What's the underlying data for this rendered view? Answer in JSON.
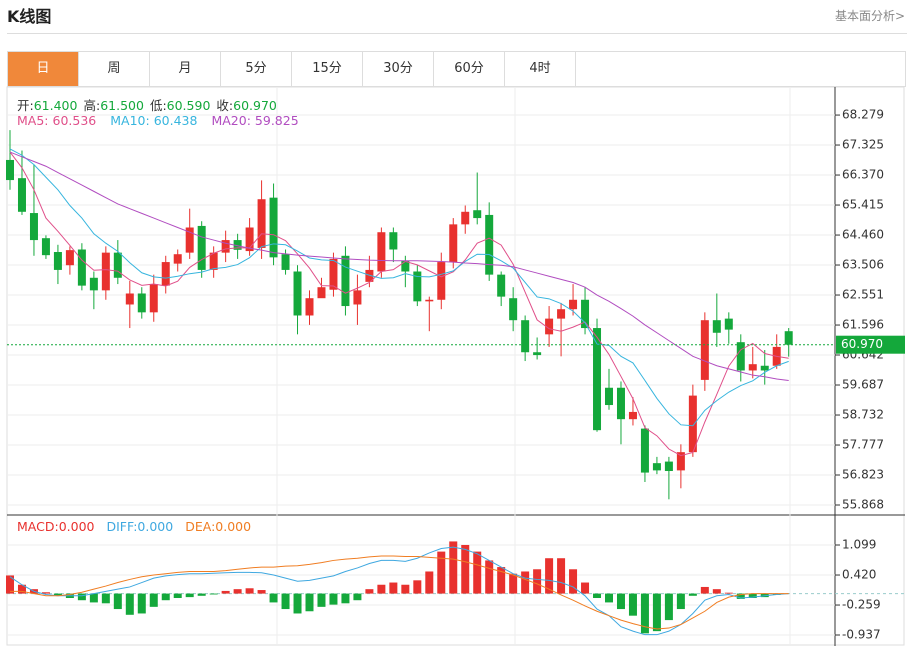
{
  "header": {
    "title": "K线图",
    "link": "基本面分析>"
  },
  "tabs": [
    "日",
    "周",
    "月",
    "5分",
    "15分",
    "30分",
    "60分",
    "4时"
  ],
  "chart_data": [
    {
      "type": "candlestick",
      "info": [
        {
          "label": "开:",
          "value": "61.400"
        },
        {
          "label": "高:",
          "value": "61.500"
        },
        {
          "label": "低:",
          "value": "60.590"
        },
        {
          "label": "收:",
          "value": "60.970"
        }
      ],
      "up_color": "#e8312e",
      "down_color": "#14a83b",
      "open": [
        66.85,
        66.27,
        65.16,
        64.36,
        63.92,
        63.5,
        64.0,
        63.1,
        62.7,
        63.9,
        62.25,
        62.6,
        62.0,
        62.85,
        63.55,
        63.9,
        64.75,
        63.35,
        63.9,
        64.3,
        63.95,
        64.05,
        65.65,
        63.85,
        63.3,
        61.9,
        62.45,
        62.72,
        63.8,
        62.25,
        62.97,
        63.3,
        64.55,
        63.65,
        63.3,
        62.35,
        62.4,
        63.6,
        64.8,
        65.25,
        65.1,
        63.2,
        62.45,
        61.75,
        60.73,
        61.3,
        61.8,
        62.1,
        62.4,
        61.5,
        59.6,
        59.6,
        58.6,
        58.3,
        57.2,
        57.25,
        56.97,
        57.55,
        59.85,
        61.75,
        61.8,
        61.05,
        60.15,
        60.3,
        60.3,
        61.4
      ],
      "high": [
        67.8,
        67.15,
        66.7,
        64.45,
        64.15,
        64.1,
        64.2,
        63.3,
        64.1,
        64.3,
        63.0,
        62.8,
        63.2,
        63.8,
        64.0,
        65.3,
        64.9,
        64.1,
        64.6,
        64.5,
        65.0,
        66.2,
        66.1,
        64.0,
        63.5,
        62.7,
        63.1,
        63.9,
        64.1,
        63.2,
        63.8,
        64.7,
        64.7,
        63.8,
        63.5,
        62.5,
        63.9,
        65.0,
        65.4,
        66.45,
        65.5,
        63.3,
        62.8,
        61.9,
        61.2,
        62.2,
        62.3,
        62.9,
        62.8,
        61.8,
        60.2,
        59.8,
        59.3,
        58.4,
        57.4,
        57.4,
        57.8,
        59.7,
        62.0,
        62.6,
        62.0,
        61.3,
        60.9,
        60.8,
        61.3,
        61.5
      ],
      "low": [
        65.9,
        65.1,
        63.8,
        63.7,
        62.9,
        63.2,
        62.7,
        62.1,
        62.4,
        62.9,
        61.5,
        61.8,
        61.7,
        62.6,
        63.3,
        63.7,
        63.1,
        63.1,
        63.6,
        63.7,
        63.8,
        63.7,
        63.5,
        63.2,
        61.3,
        61.6,
        62.5,
        62.5,
        61.9,
        61.6,
        62.8,
        63.1,
        63.6,
        62.8,
        62.2,
        61.4,
        62.1,
        63.4,
        64.5,
        64.8,
        63.0,
        62.2,
        61.4,
        60.45,
        60.5,
        60.9,
        60.6,
        61.9,
        61.3,
        58.2,
        58.9,
        57.8,
        58.4,
        56.6,
        56.85,
        56.05,
        56.4,
        57.4,
        59.5,
        60.9,
        61.0,
        59.8,
        59.9,
        59.7,
        60.2,
        60.59
      ],
      "close": [
        66.21,
        65.2,
        64.3,
        63.82,
        63.35,
        63.98,
        62.85,
        62.7,
        63.9,
        63.1,
        62.6,
        62.0,
        62.9,
        63.6,
        63.85,
        64.7,
        63.35,
        63.9,
        64.3,
        63.99,
        64.7,
        65.6,
        63.75,
        63.35,
        61.9,
        62.45,
        62.8,
        63.7,
        62.2,
        62.7,
        63.35,
        64.55,
        64.0,
        63.3,
        62.35,
        62.4,
        63.6,
        64.8,
        65.2,
        65.0,
        63.2,
        62.5,
        61.75,
        60.73,
        60.64,
        61.8,
        62.1,
        62.4,
        61.5,
        58.25,
        59.05,
        58.6,
        58.83,
        56.9,
        56.97,
        56.95,
        57.55,
        59.35,
        61.75,
        61.35,
        61.45,
        60.15,
        60.35,
        60.15,
        60.9,
        60.97
      ],
      "lines": [
        {
          "name": "MA5:",
          "value_label": "60.536",
          "color": "#e0508a",
          "values": [
            67.1,
            66.6,
            65.9,
            65.0,
            64.58,
            64.13,
            63.66,
            63.34,
            63.36,
            63.31,
            63.03,
            62.86,
            62.9,
            62.84,
            62.99,
            63.43,
            63.68,
            63.88,
            64.02,
            64.05,
            64.05,
            64.5,
            64.47,
            64.28,
            63.86,
            63.41,
            62.85,
            62.84,
            62.61,
            62.77,
            62.95,
            63.3,
            63.36,
            63.62,
            63.51,
            63.32,
            63.13,
            63.29,
            63.67,
            64.2,
            64.36,
            64.14,
            63.53,
            62.64,
            61.76,
            61.48,
            61.4,
            61.53,
            61.69,
            61.21,
            60.66,
            59.96,
            59.25,
            58.33,
            58.07,
            57.65,
            57.44,
            57.54,
            58.51,
            59.39,
            60.29,
            60.81,
            61.01,
            60.69,
            60.6,
            60.54
          ]
        },
        {
          "name": "MA10:",
          "value_label": "60.438",
          "color": "#37b5de",
          "values": [
            67.2,
            67.0,
            66.7,
            66.3,
            65.9,
            65.4,
            65.0,
            64.5,
            64.2,
            63.94,
            63.58,
            63.26,
            63.13,
            63.09,
            63.15,
            63.23,
            63.28,
            63.39,
            63.43,
            63.52,
            63.74,
            64.09,
            64.18,
            64.15,
            63.95,
            63.73,
            63.67,
            63.65,
            63.44,
            63.31,
            63.18,
            63.08,
            63.1,
            63.23,
            63.14,
            63.13,
            63.21,
            63.32,
            63.62,
            63.85,
            63.84,
            63.64,
            63.41,
            62.95,
            62.49,
            62.43,
            62.28,
            62.04,
            61.67,
            60.99,
            60.95,
            60.6,
            60.39,
            59.83,
            59.26,
            58.77,
            58.42,
            58.39,
            58.88,
            59.19,
            59.46,
            59.67,
            59.82,
            60.09,
            60.3,
            60.44
          ]
        },
        {
          "name": "MA20:",
          "value_label": "59.825",
          "color": "#b14dc0",
          "values": [
            67.1,
            66.95,
            66.8,
            66.65,
            66.45,
            66.25,
            66.05,
            65.85,
            65.65,
            65.45,
            65.3,
            65.15,
            65.0,
            64.85,
            64.7,
            64.55,
            64.4,
            64.3,
            64.2,
            64.12,
            64.04,
            63.98,
            63.9,
            63.86,
            63.82,
            63.79,
            63.76,
            63.73,
            63.7,
            63.68,
            63.66,
            63.65,
            63.64,
            63.64,
            63.64,
            63.63,
            63.62,
            63.6,
            63.57,
            63.55,
            63.52,
            63.5,
            63.45,
            63.35,
            63.25,
            63.15,
            63.05,
            62.95,
            62.8,
            62.55,
            62.35,
            62.12,
            61.88,
            61.6,
            61.35,
            61.1,
            60.85,
            60.6,
            60.45,
            60.3,
            60.2,
            60.1,
            60.0,
            59.95,
            59.88,
            59.83
          ]
        }
      ],
      "last_price": {
        "value": 60.97,
        "label": "60.970",
        "color": "#14a83b"
      },
      "ylim": [
        55.55,
        69.14
      ],
      "yticks": [
        68.279,
        67.325,
        {
          "value": 66.37,
          "label": "66.370"
        },
        65.415,
        {
          "value": 64.46,
          "label": "64.460"
        },
        63.506,
        62.551,
        61.596,
        {
          "value": 60.642,
          "label": "60.642"
        },
        59.687,
        58.732,
        57.777,
        56.823,
        55.868
      ]
    },
    {
      "type": "macd",
      "hist": {
        "name": "MACD:",
        "value_label": "0.000",
        "color": "#e8312e",
        "down_color": "#14a83b",
        "values": [
          0.41,
          0.2,
          0.1,
          0.03,
          -0.05,
          -0.1,
          -0.15,
          -0.2,
          -0.22,
          -0.35,
          -0.48,
          -0.45,
          -0.3,
          -0.15,
          -0.1,
          -0.08,
          -0.05,
          -0.02,
          0.06,
          0.1,
          0.12,
          0.08,
          -0.2,
          -0.35,
          -0.45,
          -0.4,
          -0.3,
          -0.25,
          -0.22,
          -0.15,
          0.1,
          0.2,
          0.25,
          0.2,
          0.3,
          0.5,
          0.95,
          1.18,
          1.1,
          0.95,
          0.75,
          0.6,
          0.45,
          0.5,
          0.55,
          0.8,
          0.8,
          0.55,
          0.25,
          -0.1,
          -0.2,
          -0.35,
          -0.5,
          -0.9,
          -0.85,
          -0.6,
          -0.35,
          -0.05,
          0.15,
          0.1,
          0.02,
          -0.12,
          -0.1,
          -0.08,
          -0.03,
          0.0
        ]
      },
      "lines": [
        {
          "name": "DIFF:",
          "value_label": "0.000",
          "color": "#3fa8e0",
          "values": [
            0.38,
            0.2,
            0.05,
            -0.02,
            -0.05,
            -0.05,
            -0.05,
            0.0,
            0.05,
            0.1,
            0.15,
            0.25,
            0.35,
            0.4,
            0.43,
            0.45,
            0.45,
            0.46,
            0.47,
            0.48,
            0.48,
            0.47,
            0.42,
            0.35,
            0.28,
            0.3,
            0.35,
            0.4,
            0.5,
            0.58,
            0.68,
            0.75,
            0.75,
            0.73,
            0.8,
            0.92,
            1.02,
            1.05,
            1.0,
            0.9,
            0.75,
            0.6,
            0.45,
            0.35,
            0.32,
            0.3,
            0.25,
            0.15,
            -0.05,
            -0.35,
            -0.5,
            -0.75,
            -0.85,
            -0.93,
            -0.93,
            -0.85,
            -0.7,
            -0.45,
            -0.15,
            -0.05,
            -0.02,
            -0.1,
            -0.08,
            -0.05,
            -0.02,
            0.0
          ]
        },
        {
          "name": "DEA:",
          "value_label": "0.000",
          "color": "#f07d22",
          "values": [
            0.05,
            0.05,
            0.0,
            -0.05,
            -0.05,
            -0.02,
            0.03,
            0.1,
            0.17,
            0.25,
            0.32,
            0.38,
            0.42,
            0.45,
            0.48,
            0.5,
            0.5,
            0.5,
            0.52,
            0.55,
            0.58,
            0.6,
            0.6,
            0.62,
            0.63,
            0.66,
            0.7,
            0.75,
            0.78,
            0.8,
            0.83,
            0.85,
            0.85,
            0.84,
            0.84,
            0.82,
            0.8,
            0.78,
            0.72,
            0.65,
            0.57,
            0.5,
            0.42,
            0.32,
            0.22,
            0.1,
            -0.03,
            -0.15,
            -0.28,
            -0.4,
            -0.5,
            -0.6,
            -0.68,
            -0.75,
            -0.8,
            -0.78,
            -0.7,
            -0.55,
            -0.4,
            -0.2,
            -0.08,
            -0.02,
            0.0,
            0.0,
            0.0,
            0.0
          ]
        }
      ],
      "ylim": [
        -1.186,
        1.778
      ],
      "yticks": [
        1.099,
        {
          "value": 0.42,
          "label": "0.420"
        },
        -0.259,
        -0.937
      ]
    }
  ]
}
